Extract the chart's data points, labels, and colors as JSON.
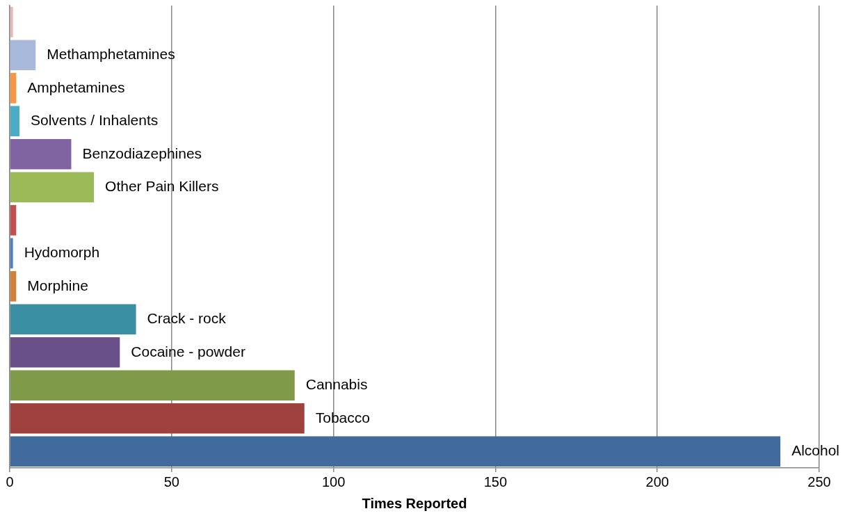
{
  "chart_data": {
    "type": "bar",
    "orientation": "horizontal",
    "xlabel": "Times Reported",
    "categories": [
      null,
      "Methamphetamines",
      "Amphetamines",
      "Solvents / Inhalents",
      "Benzodiazephines",
      "Other Pain Killers",
      null,
      "Hydomorph",
      "Morphine",
      "Crack - rock",
      "Cocaine - powder",
      "Cannabis",
      "Tobacco",
      "Alcohol"
    ],
    "values": [
      1,
      8,
      2,
      3,
      19,
      26,
      2,
      1,
      2,
      39,
      34,
      88,
      91,
      238
    ],
    "colors": [
      "#e6b9b8",
      "#a9b9dc",
      "#f79646",
      "#4bacc6",
      "#8064a2",
      "#9bbb59",
      "#c0504d",
      "#4f81bd",
      "#d0823c",
      "#3a8fa3",
      "#6a5089",
      "#7f9b4a",
      "#9f413e",
      "#416b9c"
    ],
    "xlim": [
      0,
      250
    ],
    "xticks": [
      0,
      50,
      100,
      150,
      200,
      250
    ],
    "grid": "x",
    "legend": false
  }
}
